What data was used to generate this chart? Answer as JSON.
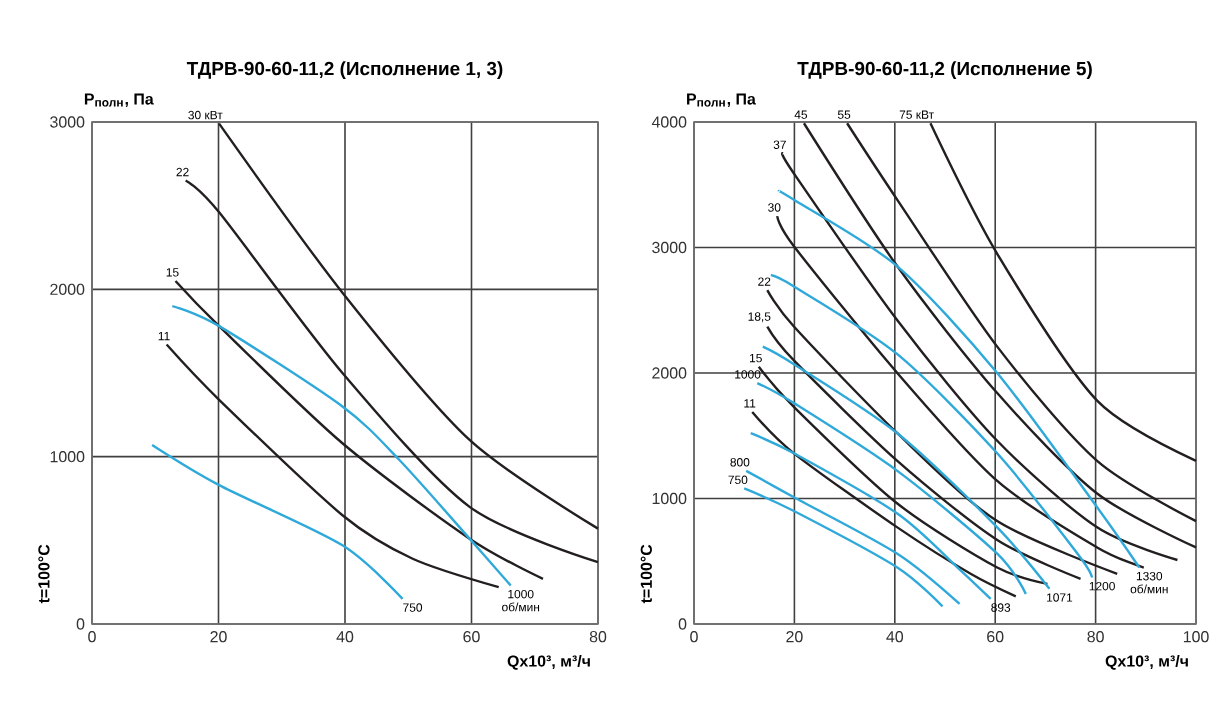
{
  "chart_data": [
    {
      "type": "line",
      "title": "ТДРВ-90-60-11,2 (Исполнение 1, 3)",
      "xlabel": "Qx10³, м³/ч",
      "ylabel": "P$_{полн}$, Па",
      "xlim": [
        0,
        80
      ],
      "ylim": [
        0,
        3000
      ],
      "xticks": [
        0,
        20,
        40,
        60,
        80
      ],
      "yticks": [
        0,
        1000,
        2000,
        3000
      ],
      "grid": true,
      "series": [
        {
          "color": "#231f20",
          "x": [
            20.1,
            39.6,
            59.7,
            80
          ],
          "values": [
            2990,
            1980,
            1100,
            570
          ]
        },
        {
          "color": "#231f20",
          "x": [
            14.8,
            20.1,
            39.6,
            59.7,
            80
          ],
          "values": [
            2650,
            2460,
            1500,
            700,
            370
          ]
        },
        {
          "color": "#231f20",
          "x": [
            13.2,
            20.1,
            39.6,
            59.7,
            71.3
          ],
          "values": [
            2050,
            1780,
            1080,
            510,
            270
          ]
        },
        {
          "color": "#231f20",
          "x": [
            11.8,
            20.1,
            39.6,
            50.7,
            64.3
          ],
          "values": [
            1670,
            1340,
            650,
            390,
            220
          ]
        },
        {
          "color": "#2fa9d9",
          "x": [
            12.7,
            20.1,
            39.6,
            48.6,
            59.7,
            66.2
          ],
          "values": [
            1900,
            1780,
            1300,
            980,
            510,
            230
          ]
        },
        {
          "color": "#2fa9d9",
          "x": [
            9.5,
            20.1,
            39.6,
            49.1
          ],
          "values": [
            1070,
            830,
            470,
            150
          ]
        }
      ],
      "annotations": [
        {
          "text": "30 кВт",
          "x": 20.1,
          "y": 2990
        },
        {
          "text": "22",
          "x": 14.8,
          "y": 2650
        },
        {
          "text": "15",
          "x": 13.2,
          "y": 2050
        },
        {
          "text": "11",
          "x": 11.8,
          "y": 1670
        },
        {
          "text": "1000 об/мин",
          "x": 66.2,
          "y": 230
        },
        {
          "text": "750",
          "x": 49.1,
          "y": 150
        },
        "t=100°C"
      ]
    },
    {
      "type": "line",
      "title": "ТДРВ-90-60-11,2 (Исполнение 5)",
      "xlabel": "Qx10³, м³/ч",
      "ylabel": "P$_{полн}$, Па",
      "xlim": [
        0,
        100
      ],
      "ylim": [
        0,
        4000
      ],
      "xticks": [
        0,
        20,
        40,
        60,
        80,
        100
      ],
      "yticks": [
        0,
        1000,
        2000,
        3000,
        4000
      ],
      "grid": true,
      "series": [
        {
          "color": "#231f20",
          "x": [
            47.1,
            60.4,
            80.3,
            100
          ],
          "values": [
            3990,
            2950,
            1780,
            1300
          ]
        },
        {
          "color": "#231f20",
          "x": [
            30.5,
            40.5,
            60.4,
            80.3,
            100
          ],
          "values": [
            3990,
            3380,
            2210,
            1300,
            820
          ]
        },
        {
          "color": "#231f20",
          "x": [
            21.9,
            40.5,
            60.4,
            80.3,
            100
          ],
          "values": [
            3990,
            2850,
            1840,
            1040,
            610
          ]
        },
        {
          "color": "#231f20",
          "x": [
            17.7,
            19.9,
            40.5,
            60.4,
            80.3,
            96.3
          ],
          "values": [
            3750,
            3590,
            2420,
            1460,
            770,
            510
          ]
        },
        {
          "color": "#231f20",
          "x": [
            16.6,
            19.9,
            40.5,
            60.4,
            80.3,
            89.6
          ],
          "values": [
            3250,
            3010,
            2000,
            1140,
            610,
            450
          ]
        },
        {
          "color": "#231f20",
          "x": [
            14.6,
            19.9,
            40.5,
            60.4,
            84.3
          ],
          "values": [
            2660,
            2370,
            1520,
            820,
            400
          ]
        },
        {
          "color": "#231f20",
          "x": [
            14.6,
            19.9,
            40.5,
            60.4,
            77
          ],
          "values": [
            2370,
            2100,
            1300,
            670,
            360
          ]
        },
        {
          "color": "#231f20",
          "x": [
            12.9,
            19.9,
            40.5,
            60.4,
            70.4
          ],
          "values": [
            2050,
            1730,
            960,
            450,
            320
          ]
        },
        {
          "color": "#231f20",
          "x": [
            11.6,
            19.9,
            40.5,
            55.1,
            64.1
          ],
          "values": [
            1690,
            1360,
            770,
            400,
            220
          ]
        },
        {
          "color": "#2fa9d9",
          "x": [
            16.9,
            19.9,
            40.5,
            60.4,
            80.3,
            88.7
          ],
          "values": [
            3450,
            3380,
            2850,
            2000,
            930,
            450
          ]
        },
        {
          "color": "#2fa9d9",
          "x": [
            15.3,
            19.9,
            40.5,
            60.4,
            76.4,
            79.3
          ],
          "values": [
            2780,
            2690,
            2150,
            1360,
            560,
            370
          ]
        },
        {
          "color": "#2fa9d9",
          "x": [
            13.7,
            19.9,
            40.5,
            60.4,
            70.8
          ],
          "values": [
            2210,
            2070,
            1520,
            770,
            280
          ]
        },
        {
          "color": "#2fa9d9",
          "x": [
            12.6,
            19.9,
            40.5,
            60.4,
            66.1
          ],
          "values": [
            1920,
            1760,
            1220,
            560,
            240
          ]
        },
        {
          "color": "#2fa9d9",
          "x": [
            11.3,
            19.9,
            40.5,
            52.5,
            59.1
          ],
          "values": [
            1520,
            1360,
            880,
            450,
            200
          ]
        },
        {
          "color": "#2fa9d9",
          "x": [
            10.4,
            19.9,
            40.5,
            52.9
          ],
          "values": [
            1220,
            1010,
            560,
            160
          ]
        },
        {
          "color": "#2fa9d9",
          "x": [
            10,
            19.9,
            40.5,
            49.5
          ],
          "values": [
            1080,
            900,
            450,
            140
          ]
        }
      ],
      "annotations": [
        {
          "text": "45",
          "x": 21.9,
          "y": 3990
        },
        {
          "text": "55",
          "x": 30.5,
          "y": 3990
        },
        {
          "text": "75 кВт",
          "x": 47.1,
          "y": 3990
        },
        {
          "text": "37",
          "x": 17.7,
          "y": 3750
        },
        {
          "text": "30",
          "x": 16.6,
          "y": 3250
        },
        {
          "text": "22",
          "x": 14.6,
          "y": 2660
        },
        {
          "text": "18,5",
          "x": 14.6,
          "y": 2370
        },
        {
          "text": "15",
          "x": 12.9,
          "y": 2050
        },
        {
          "text": "1000",
          "x": 12.6,
          "y": 1920
        },
        {
          "text": "11",
          "x": 11.6,
          "y": 1690
        },
        {
          "text": "800",
          "x": 10.4,
          "y": 1220
        },
        {
          "text": "750",
          "x": 10,
          "y": 1080
        },
        {
          "text": "893",
          "x": 59.1,
          "y": 200
        },
        {
          "text": "1071",
          "x": 70.8,
          "y": 280
        },
        {
          "text": "1200",
          "x": 79.3,
          "y": 370
        },
        {
          "text": "1330 об/мин",
          "x": 88.7,
          "y": 450
        },
        "t=100°C"
      ]
    }
  ]
}
